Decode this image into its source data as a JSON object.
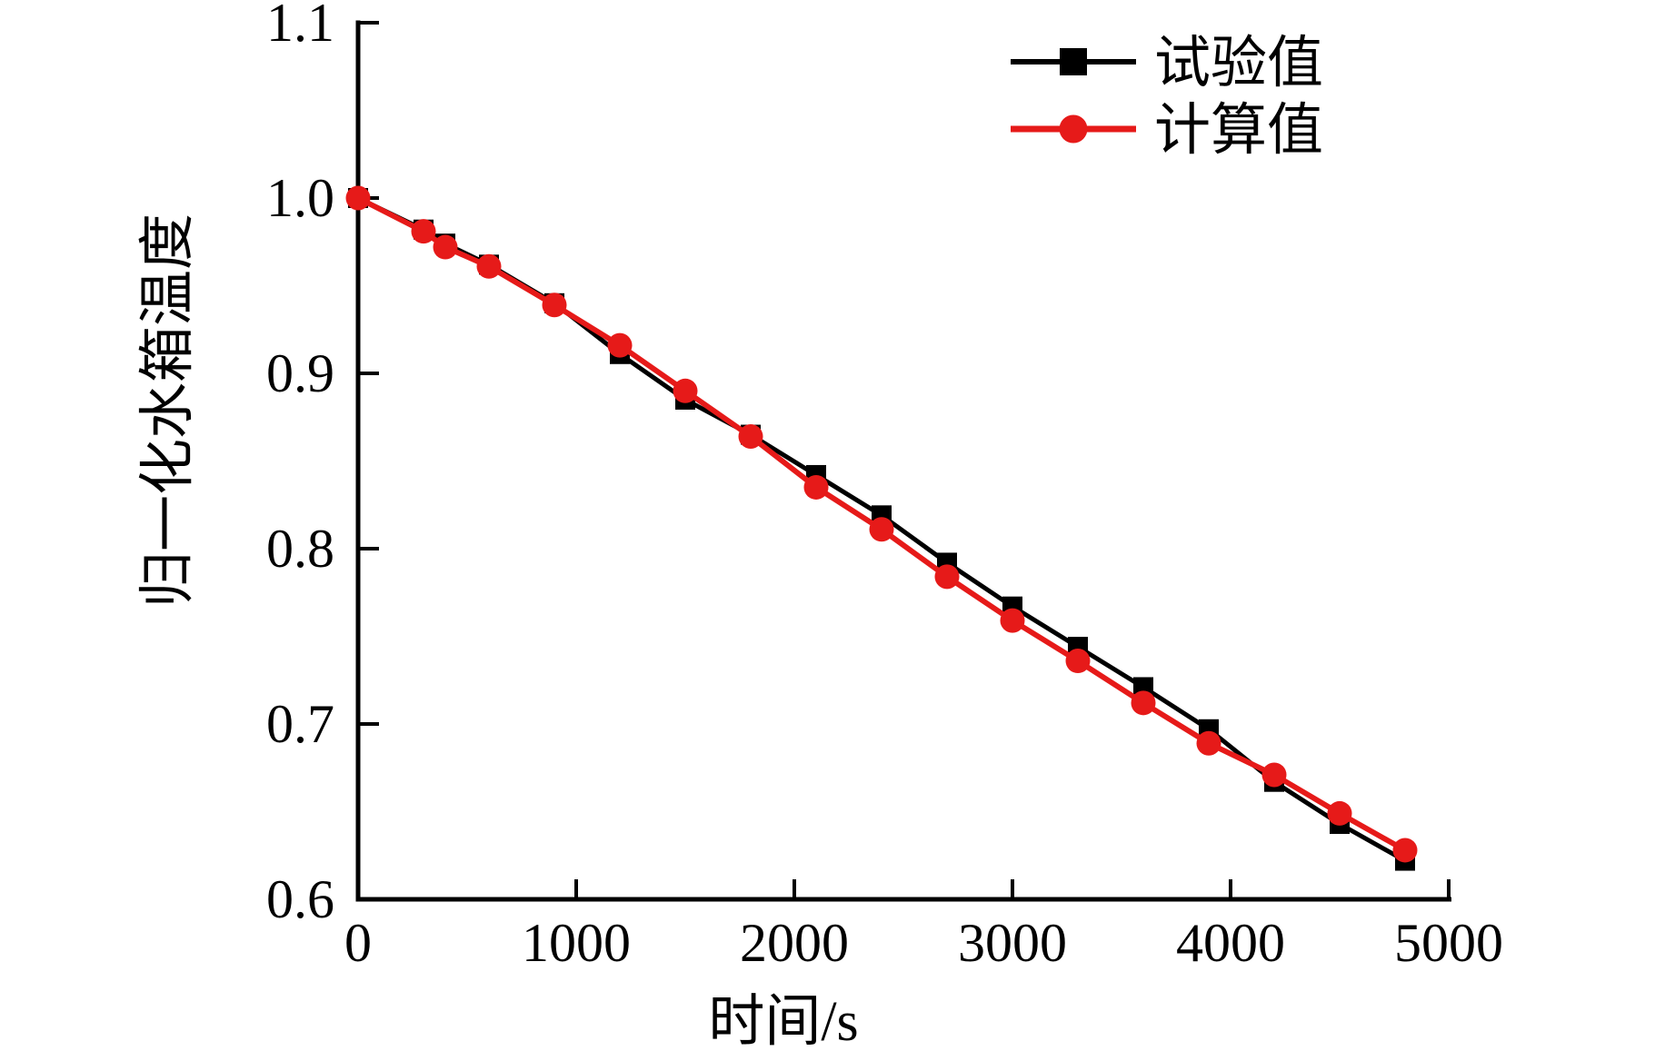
{
  "chart_data": {
    "type": "line",
    "title": "",
    "xlabel": "时间/s",
    "ylabel": "归一化水箱温度",
    "xlim": [
      0,
      5000
    ],
    "ylim": [
      0.6,
      1.1
    ],
    "x_ticks": [
      0,
      1000,
      2000,
      3000,
      4000,
      5000
    ],
    "y_ticks": [
      0.6,
      0.7,
      0.8,
      0.9,
      1.0,
      1.1
    ],
    "grid": false,
    "legend_position": "top-right",
    "x": [
      0,
      300,
      400,
      600,
      900,
      1200,
      1500,
      1800,
      2100,
      2400,
      2700,
      3000,
      3300,
      3600,
      3900,
      4200,
      4500,
      4800
    ],
    "series": [
      {
        "name": "试验值",
        "marker": "square",
        "color": "#000000",
        "values": [
          1.0,
          0.982,
          0.974,
          0.962,
          0.94,
          0.911,
          0.885,
          0.865,
          0.842,
          0.819,
          0.792,
          0.767,
          0.744,
          0.721,
          0.697,
          0.667,
          0.643,
          0.622
        ]
      },
      {
        "name": "计算值",
        "marker": "circle",
        "color": "#e61a19",
        "values": [
          1.0,
          0.981,
          0.972,
          0.961,
          0.939,
          0.916,
          0.89,
          0.864,
          0.835,
          0.811,
          0.784,
          0.759,
          0.736,
          0.712,
          0.689,
          0.671,
          0.649,
          0.628
        ]
      }
    ]
  },
  "colors": {
    "background": "#ffffff",
    "axis": "#000000",
    "experimental": "#000000",
    "calculated": "#e61a19"
  }
}
